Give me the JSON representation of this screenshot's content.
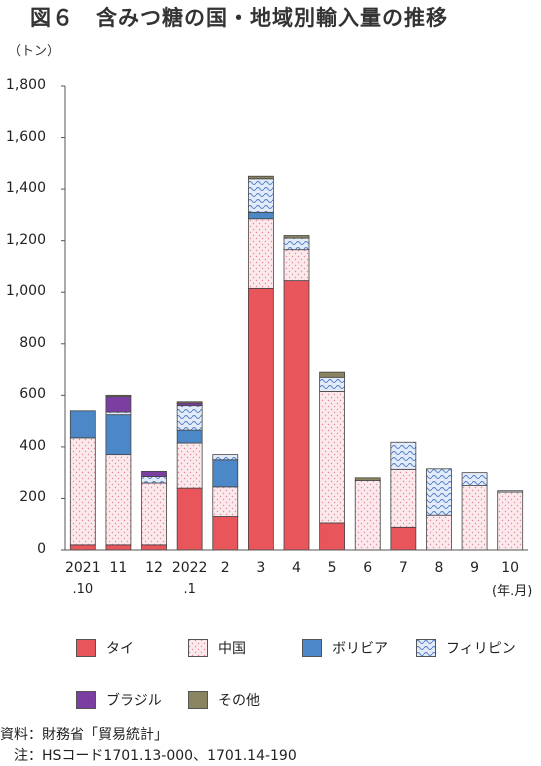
{
  "title": "図６　含みつ糖の国・地域別輸入量の推移",
  "unit_label": "（トン）",
  "x_unit_label": "(年.月)",
  "source": "資料：財務省「貿易統計」",
  "note": "　注：HSコード1701.13-000、1701.14-190",
  "colors": {
    "thai": "#e8555a",
    "china": "#fbe9ec",
    "bolivia": "#4c88c8",
    "philippines": "#d8e2f4",
    "brazil": "#7a3fa0",
    "other": "#8b8460"
  },
  "chart_data": {
    "type": "bar",
    "stacked": true,
    "title": "図６　含みつ糖の国・地域別輸入量の推移",
    "ylabel": "（トン）",
    "xlabel": "(年.月)",
    "ylim": [
      0,
      1800
    ],
    "yticks": [
      "0",
      "200",
      "400",
      "600",
      "800",
      "1,000",
      "1,200",
      "1,400",
      "1,600",
      "1,800"
    ],
    "grid": false,
    "legend_position": "bottom",
    "categories": [
      "2021\n.10",
      "11",
      "12",
      "2022\n.1",
      "2",
      "3",
      "4",
      "5",
      "6",
      "7",
      "8",
      "9",
      "10"
    ],
    "x_top_labels": [
      "2021",
      "11",
      "12",
      "2022",
      "2",
      "3",
      "4",
      "5",
      "6",
      "7",
      "8",
      "9",
      "10"
    ],
    "x_sub_labels": [
      ".10",
      "",
      "",
      ".1",
      "",
      "",
      "",
      "",
      "",
      "",
      "",
      "",
      ""
    ],
    "series": [
      {
        "name": "タイ",
        "color_key": "thai",
        "pattern": "solid",
        "values": [
          20,
          20,
          20,
          240,
          130,
          1015,
          1045,
          105,
          0,
          88,
          0,
          0,
          0
        ]
      },
      {
        "name": "中国",
        "color_key": "china",
        "pattern": "dots",
        "values": [
          415,
          350,
          240,
          175,
          115,
          270,
          120,
          510,
          270,
          225,
          135,
          250,
          225
        ]
      },
      {
        "name": "ボリビア",
        "color_key": "bolivia",
        "pattern": "solid",
        "values": [
          105,
          155,
          0,
          50,
          105,
          25,
          0,
          0,
          0,
          0,
          0,
          0,
          0
        ]
      },
      {
        "name": "フィリピン",
        "color_key": "philippines",
        "pattern": "waves",
        "values": [
          0,
          10,
          25,
          95,
          20,
          130,
          45,
          55,
          0,
          105,
          180,
          50,
          5
        ]
      },
      {
        "name": "ブラジル",
        "color_key": "brazil",
        "pattern": "solid",
        "values": [
          0,
          60,
          20,
          10,
          0,
          0,
          0,
          0,
          0,
          0,
          0,
          0,
          0
        ]
      },
      {
        "name": "その他",
        "color_key": "other",
        "pattern": "solid",
        "values": [
          0,
          5,
          0,
          5,
          0,
          10,
          10,
          20,
          10,
          0,
          0,
          0,
          0
        ]
      }
    ]
  }
}
